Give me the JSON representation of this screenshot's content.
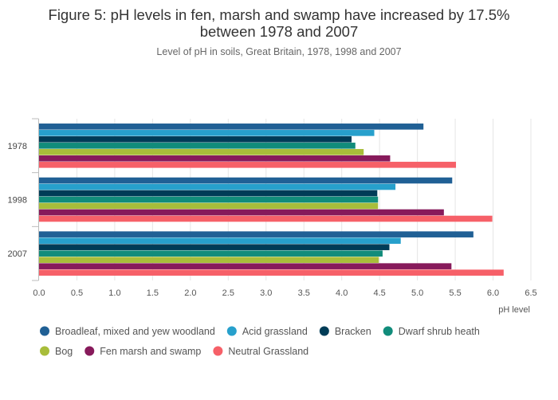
{
  "chart_data": {
    "type": "bar",
    "orientation": "horizontal",
    "title": "Figure 5: pH levels in fen, marsh and swamp have increased by 17.5% between 1978 and 2007",
    "title_lines": [
      "Figure 5: pH levels in fen, marsh and swamp have increased by 17.5%",
      "between 1978 and 2007"
    ],
    "subtitle": "Level of pH in soils, Great Britain, 1978, 1998 and 2007",
    "xlabel": "pH level",
    "ylabel": "",
    "xlim": [
      0,
      6.5
    ],
    "xticks": [
      "0.0",
      "0.5",
      "1.0",
      "1.5",
      "2.0",
      "2.5",
      "3.0",
      "3.5",
      "4.0",
      "4.5",
      "5.0",
      "5.5",
      "6.0",
      "6.5"
    ],
    "grid": true,
    "legend_position": "bottom",
    "categories": [
      "1978",
      "1998",
      "2007"
    ],
    "series": [
      {
        "name": "Broadleaf, mixed and yew woodland",
        "color": "#206095",
        "values": [
          5.08,
          5.46,
          5.74
        ]
      },
      {
        "name": "Acid grassland",
        "color": "#27a0cc",
        "values": [
          4.43,
          4.71,
          4.78
        ]
      },
      {
        "name": "Bracken",
        "color": "#003c57",
        "values": [
          4.13,
          4.47,
          4.63
        ]
      },
      {
        "name": "Dwarf shrub heath",
        "color": "#118c7b",
        "values": [
          4.18,
          4.48,
          4.54
        ]
      },
      {
        "name": "Bog",
        "color": "#a8bd3a",
        "values": [
          4.29,
          4.48,
          4.49
        ]
      },
      {
        "name": "Fen marsh and swamp",
        "color": "#871a5b",
        "values": [
          4.64,
          5.35,
          5.45
        ]
      },
      {
        "name": "Neutral Grassland",
        "color": "#f66068",
        "values": [
          5.51,
          5.99,
          6.14
        ]
      }
    ]
  }
}
